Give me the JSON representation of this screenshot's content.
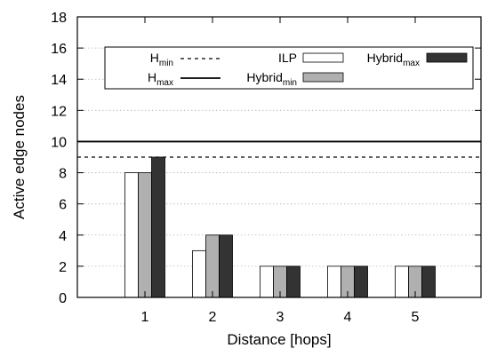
{
  "chart_data": {
    "type": "bar",
    "xlabel": "Distance [hops]",
    "ylabel": "Active edge nodes",
    "ylim": [
      0,
      18
    ],
    "yticks": [
      0,
      2,
      4,
      6,
      8,
      10,
      12,
      14,
      16,
      18
    ],
    "categories": [
      "1",
      "2",
      "3",
      "4",
      "5"
    ],
    "grid": "horizontal dotted",
    "legend_position": "top",
    "series": [
      {
        "name": "ILP",
        "name_main": "ILP",
        "name_sub": "",
        "values": [
          8,
          3,
          2,
          2,
          2
        ],
        "color": "#ffffff"
      },
      {
        "name": "Hybrid_min",
        "name_main": "Hybrid",
        "name_sub": "min",
        "values": [
          8,
          4,
          2,
          2,
          2
        ],
        "color": "#b0b0b0"
      },
      {
        "name": "Hybrid_max",
        "name_main": "Hybrid",
        "name_sub": "max",
        "values": [
          9,
          4,
          2,
          2,
          2
        ],
        "color": "#333333"
      }
    ],
    "reference_lines": [
      {
        "name": "H_min",
        "name_main": "H",
        "name_sub": "min",
        "value": 9,
        "style": "dashed"
      },
      {
        "name": "H_max",
        "name_main": "H",
        "name_sub": "max",
        "value": 10,
        "style": "solid"
      }
    ]
  }
}
